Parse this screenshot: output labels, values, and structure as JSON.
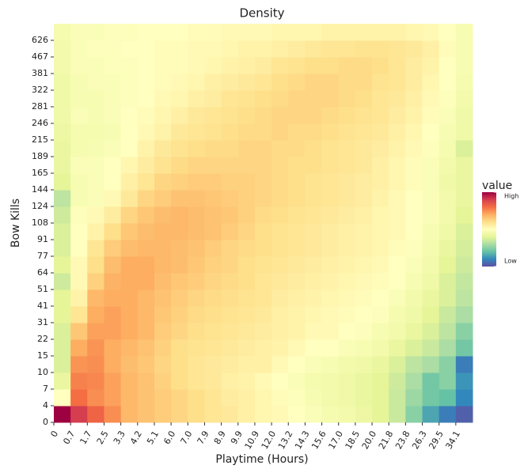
{
  "chart_data": {
    "type": "heatmap",
    "title": "Density",
    "x_label": "Playtime (Hours)",
    "y_label": "Bow Kills",
    "categories": [
      "0",
      "0.7",
      "1.7",
      "2.5",
      "3.3",
      "4.2",
      "5.1",
      "6.0",
      "7.0",
      "7.9",
      "8.9",
      "9.9",
      "10.9",
      "12.0",
      "13.2",
      "14.3",
      "15.6",
      "17.0",
      "18.5",
      "20.0",
      "21.8",
      "23.8",
      "26.3",
      "29.5",
      "34.1"
    ],
    "y_categories": [
      "0",
      "4",
      "7",
      "10",
      "15",
      "22",
      "31",
      "41",
      "51",
      "64",
      "77",
      "91",
      "108",
      "124",
      "144",
      "165",
      "189",
      "215",
      "246",
      "281",
      "322",
      "381",
      "467",
      "626"
    ],
    "values": [
      [
        1.0,
        0.9,
        0.82,
        0.75,
        0.68,
        0.66,
        0.64,
        0.62,
        0.6,
        0.58,
        0.57,
        0.55,
        0.53,
        0.52,
        0.5,
        0.48,
        0.46,
        0.45,
        0.43,
        0.4,
        0.35,
        0.25,
        0.15,
        0.08,
        0.03
      ],
      [
        0.5,
        0.8,
        0.75,
        0.72,
        0.68,
        0.66,
        0.64,
        0.62,
        0.6,
        0.58,
        0.56,
        0.55,
        0.53,
        0.51,
        0.49,
        0.47,
        0.45,
        0.44,
        0.42,
        0.4,
        0.35,
        0.28,
        0.22,
        0.2,
        0.1
      ],
      [
        0.42,
        0.77,
        0.76,
        0.72,
        0.68,
        0.66,
        0.63,
        0.6,
        0.58,
        0.57,
        0.55,
        0.54,
        0.52,
        0.5,
        0.48,
        0.46,
        0.45,
        0.44,
        0.42,
        0.4,
        0.36,
        0.3,
        0.22,
        0.25,
        0.12
      ],
      [
        0.38,
        0.74,
        0.75,
        0.7,
        0.67,
        0.65,
        0.62,
        0.6,
        0.58,
        0.57,
        0.56,
        0.55,
        0.55,
        0.52,
        0.5,
        0.48,
        0.47,
        0.45,
        0.44,
        0.42,
        0.38,
        0.33,
        0.3,
        0.25,
        0.08
      ],
      [
        0.38,
        0.7,
        0.74,
        0.7,
        0.68,
        0.66,
        0.63,
        0.6,
        0.59,
        0.58,
        0.57,
        0.56,
        0.55,
        0.54,
        0.52,
        0.5,
        0.5,
        0.48,
        0.47,
        0.45,
        0.42,
        0.38,
        0.35,
        0.3,
        0.22
      ],
      [
        0.38,
        0.65,
        0.72,
        0.72,
        0.7,
        0.68,
        0.64,
        0.62,
        0.6,
        0.59,
        0.58,
        0.57,
        0.56,
        0.55,
        0.54,
        0.52,
        0.52,
        0.5,
        0.49,
        0.47,
        0.45,
        0.42,
        0.38,
        0.33,
        0.25
      ],
      [
        0.4,
        0.58,
        0.7,
        0.72,
        0.7,
        0.68,
        0.65,
        0.63,
        0.61,
        0.6,
        0.59,
        0.58,
        0.57,
        0.55,
        0.54,
        0.53,
        0.52,
        0.51,
        0.5,
        0.49,
        0.46,
        0.44,
        0.4,
        0.35,
        0.3
      ],
      [
        0.4,
        0.54,
        0.68,
        0.7,
        0.7,
        0.68,
        0.66,
        0.64,
        0.62,
        0.61,
        0.6,
        0.59,
        0.58,
        0.56,
        0.55,
        0.54,
        0.53,
        0.52,
        0.51,
        0.5,
        0.48,
        0.45,
        0.42,
        0.38,
        0.33
      ],
      [
        0.36,
        0.52,
        0.63,
        0.69,
        0.7,
        0.7,
        0.67,
        0.65,
        0.64,
        0.62,
        0.61,
        0.6,
        0.58,
        0.57,
        0.56,
        0.55,
        0.54,
        0.53,
        0.52,
        0.51,
        0.5,
        0.47,
        0.44,
        0.38,
        0.34
      ],
      [
        0.4,
        0.52,
        0.6,
        0.67,
        0.7,
        0.7,
        0.68,
        0.67,
        0.65,
        0.63,
        0.62,
        0.6,
        0.59,
        0.58,
        0.57,
        0.56,
        0.55,
        0.54,
        0.53,
        0.52,
        0.5,
        0.48,
        0.45,
        0.4,
        0.36
      ],
      [
        0.38,
        0.5,
        0.58,
        0.64,
        0.67,
        0.68,
        0.68,
        0.67,
        0.66,
        0.64,
        0.62,
        0.61,
        0.6,
        0.59,
        0.58,
        0.57,
        0.56,
        0.55,
        0.54,
        0.53,
        0.51,
        0.49,
        0.46,
        0.42,
        0.37
      ],
      [
        0.38,
        0.5,
        0.54,
        0.6,
        0.65,
        0.67,
        0.68,
        0.68,
        0.67,
        0.66,
        0.64,
        0.62,
        0.6,
        0.59,
        0.58,
        0.57,
        0.56,
        0.55,
        0.54,
        0.53,
        0.52,
        0.5,
        0.47,
        0.44,
        0.38
      ],
      [
        0.36,
        0.49,
        0.52,
        0.56,
        0.62,
        0.65,
        0.67,
        0.68,
        0.67,
        0.66,
        0.65,
        0.63,
        0.61,
        0.6,
        0.59,
        0.58,
        0.57,
        0.56,
        0.55,
        0.53,
        0.52,
        0.5,
        0.48,
        0.45,
        0.4
      ],
      [
        0.33,
        0.47,
        0.48,
        0.52,
        0.57,
        0.62,
        0.64,
        0.66,
        0.66,
        0.65,
        0.64,
        0.63,
        0.62,
        0.61,
        0.6,
        0.59,
        0.58,
        0.57,
        0.56,
        0.54,
        0.52,
        0.5,
        0.48,
        0.45,
        0.42
      ],
      [
        0.4,
        0.47,
        0.48,
        0.5,
        0.55,
        0.58,
        0.62,
        0.63,
        0.64,
        0.64,
        0.63,
        0.63,
        0.62,
        0.61,
        0.6,
        0.59,
        0.58,
        0.57,
        0.56,
        0.55,
        0.53,
        0.51,
        0.48,
        0.44,
        0.42
      ],
      [
        0.42,
        0.48,
        0.48,
        0.5,
        0.53,
        0.56,
        0.59,
        0.61,
        0.62,
        0.62,
        0.62,
        0.62,
        0.62,
        0.61,
        0.6,
        0.6,
        0.59,
        0.58,
        0.57,
        0.55,
        0.53,
        0.51,
        0.48,
        0.45,
        0.42
      ],
      [
        0.42,
        0.46,
        0.47,
        0.48,
        0.5,
        0.54,
        0.57,
        0.59,
        0.6,
        0.61,
        0.61,
        0.62,
        0.62,
        0.61,
        0.61,
        0.6,
        0.59,
        0.58,
        0.57,
        0.56,
        0.54,
        0.52,
        0.49,
        0.46,
        0.38
      ],
      [
        0.43,
        0.46,
        0.46,
        0.47,
        0.5,
        0.52,
        0.54,
        0.57,
        0.58,
        0.59,
        0.6,
        0.61,
        0.61,
        0.62,
        0.61,
        0.61,
        0.6,
        0.59,
        0.58,
        0.57,
        0.55,
        0.53,
        0.5,
        0.47,
        0.44
      ],
      [
        0.44,
        0.48,
        0.47,
        0.48,
        0.5,
        0.51,
        0.53,
        0.55,
        0.57,
        0.58,
        0.59,
        0.6,
        0.61,
        0.62,
        0.62,
        0.62,
        0.61,
        0.6,
        0.59,
        0.58,
        0.56,
        0.54,
        0.51,
        0.48,
        0.44
      ],
      [
        0.44,
        0.47,
        0.47,
        0.48,
        0.49,
        0.5,
        0.52,
        0.53,
        0.55,
        0.56,
        0.58,
        0.59,
        0.6,
        0.61,
        0.62,
        0.62,
        0.62,
        0.61,
        0.6,
        0.58,
        0.57,
        0.55,
        0.52,
        0.49,
        0.45
      ],
      [
        0.44,
        0.47,
        0.48,
        0.48,
        0.49,
        0.5,
        0.51,
        0.52,
        0.53,
        0.55,
        0.56,
        0.57,
        0.58,
        0.6,
        0.61,
        0.62,
        0.62,
        0.61,
        0.61,
        0.59,
        0.58,
        0.56,
        0.53,
        0.5,
        0.46
      ],
      [
        0.45,
        0.48,
        0.48,
        0.49,
        0.49,
        0.5,
        0.51,
        0.51,
        0.52,
        0.53,
        0.54,
        0.55,
        0.56,
        0.58,
        0.59,
        0.6,
        0.6,
        0.61,
        0.61,
        0.6,
        0.58,
        0.56,
        0.54,
        0.5,
        0.47
      ],
      [
        0.45,
        0.48,
        0.49,
        0.49,
        0.5,
        0.5,
        0.51,
        0.51,
        0.52,
        0.52,
        0.53,
        0.54,
        0.54,
        0.55,
        0.56,
        0.57,
        0.58,
        0.58,
        0.59,
        0.59,
        0.58,
        0.57,
        0.55,
        0.51,
        0.47
      ],
      [
        0.46,
        0.48,
        0.48,
        0.49,
        0.49,
        0.5,
        0.5,
        0.5,
        0.51,
        0.51,
        0.52,
        0.52,
        0.52,
        0.53,
        0.53,
        0.53,
        0.54,
        0.54,
        0.54,
        0.54,
        0.54,
        0.53,
        0.52,
        0.5,
        0.47
      ]
    ],
    "colormap": [
      "#5e4fa2",
      "#3288bd",
      "#66c2a5",
      "#abdda4",
      "#e6f598",
      "#ffffbf",
      "#fee08b",
      "#fdae61",
      "#f46d43",
      "#d53e4f",
      "#9e0142"
    ],
    "colorbar": {
      "title": "value",
      "lim": [
        0,
        1
      ],
      "ticks": [
        {
          "value": 1,
          "label": "High"
        },
        {
          "value": 0,
          "label": "Low"
        }
      ]
    }
  }
}
